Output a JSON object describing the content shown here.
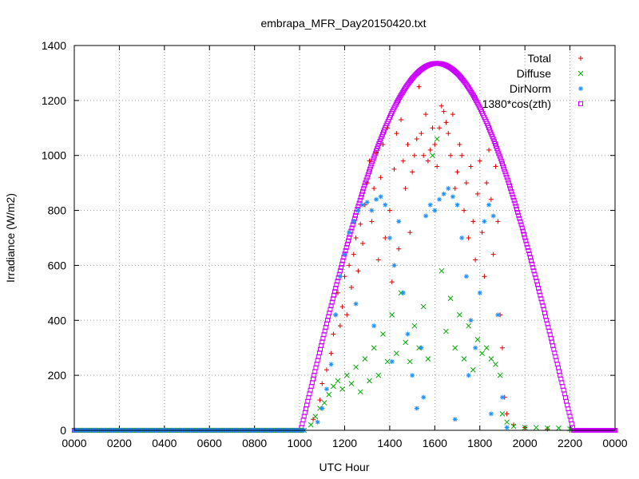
{
  "chart_data": {
    "type": "scatter",
    "title": "embrapa_MFR_Day20150420.txt",
    "xlabel": "UTC Hour",
    "ylabel": "Irradiance (W/m2)",
    "xlim": [
      0,
      24
    ],
    "ylim": [
      0,
      1400
    ],
    "x_ticks": [
      0,
      2,
      4,
      6,
      8,
      10,
      12,
      14,
      16,
      18,
      20,
      22,
      24
    ],
    "x_tick_labels": [
      "0000",
      "0200",
      "0400",
      "0600",
      "0800",
      "1000",
      "1200",
      "1400",
      "1600",
      "1800",
      "2000",
      "2200",
      "0000"
    ],
    "y_ticks": [
      0,
      200,
      400,
      600,
      800,
      1000,
      1200,
      1400
    ],
    "y_tick_labels": [
      "0",
      "200",
      "400",
      "600",
      "800",
      "1000",
      "1200",
      "1400"
    ],
    "grid": true,
    "legend_position": "top-right",
    "series": [
      {
        "name": "Total",
        "color": "#dd0000",
        "marker": "plus",
        "points": [
          [
            10.6,
            40
          ],
          [
            10.9,
            110
          ],
          [
            11.0,
            170
          ],
          [
            11.2,
            220
          ],
          [
            11.4,
            280
          ],
          [
            11.5,
            350
          ],
          [
            11.6,
            420
          ],
          [
            11.7,
            500
          ],
          [
            11.8,
            380
          ],
          [
            11.9,
            450
          ],
          [
            12.0,
            560
          ],
          [
            12.1,
            420
          ],
          [
            12.2,
            600
          ],
          [
            12.3,
            520
          ],
          [
            12.4,
            640
          ],
          [
            12.5,
            700
          ],
          [
            12.6,
            580
          ],
          [
            12.7,
            750
          ],
          [
            12.8,
            680
          ],
          [
            12.9,
            820
          ],
          [
            13.0,
            900
          ],
          [
            13.1,
            980
          ],
          [
            13.2,
            760
          ],
          [
            13.3,
            880
          ],
          [
            13.4,
            1010
          ],
          [
            13.5,
            620
          ],
          [
            13.6,
            920
          ],
          [
            13.7,
            1040
          ],
          [
            13.8,
            700
          ],
          [
            13.9,
            1100
          ],
          [
            14.0,
            800
          ],
          [
            14.1,
            540
          ],
          [
            14.2,
            950
          ],
          [
            14.3,
            1080
          ],
          [
            14.4,
            660
          ],
          [
            14.5,
            1130
          ],
          [
            14.6,
            980
          ],
          [
            14.7,
            880
          ],
          [
            14.8,
            1040
          ],
          [
            14.9,
            720
          ],
          [
            15.0,
            940
          ],
          [
            15.1,
            1000
          ],
          [
            15.2,
            1060
          ],
          [
            15.3,
            1250
          ],
          [
            15.4,
            1080
          ],
          [
            15.5,
            1000
          ],
          [
            15.6,
            1150
          ],
          [
            15.7,
            980
          ],
          [
            15.8,
            1020
          ],
          [
            15.9,
            1100
          ],
          [
            16.0,
            1040
          ],
          [
            16.1,
            960
          ],
          [
            16.2,
            1100
          ],
          [
            16.3,
            1180
          ],
          [
            16.4,
            1160
          ],
          [
            16.5,
            1120
          ],
          [
            16.6,
            1080
          ],
          [
            16.7,
            1000
          ],
          [
            16.8,
            1150
          ],
          [
            16.9,
            880
          ],
          [
            17.0,
            940
          ],
          [
            17.1,
            1040
          ],
          [
            17.2,
            1000
          ],
          [
            17.3,
            800
          ],
          [
            17.4,
            900
          ],
          [
            17.5,
            700
          ],
          [
            17.6,
            960
          ],
          [
            17.7,
            760
          ],
          [
            17.8,
            620
          ],
          [
            17.9,
            860
          ],
          [
            18.0,
            980
          ],
          [
            18.1,
            720
          ],
          [
            18.2,
            560
          ],
          [
            18.3,
            900
          ],
          [
            18.4,
            1020
          ],
          [
            18.5,
            840
          ],
          [
            18.6,
            640
          ],
          [
            18.7,
            960
          ],
          [
            18.8,
            760
          ],
          [
            18.9,
            420
          ],
          [
            19.0,
            300
          ],
          [
            19.1,
            120
          ],
          [
            19.2,
            60
          ],
          [
            19.5,
            20
          ],
          [
            20.0,
            10
          ],
          [
            21.0,
            5
          ],
          [
            22.0,
            0
          ]
        ]
      },
      {
        "name": "Diffuse",
        "color": "#00aa00",
        "marker": "x",
        "points": [
          [
            10.5,
            20
          ],
          [
            10.7,
            50
          ],
          [
            10.9,
            80
          ],
          [
            11.1,
            100
          ],
          [
            11.3,
            130
          ],
          [
            11.5,
            160
          ],
          [
            11.7,
            180
          ],
          [
            11.9,
            150
          ],
          [
            12.1,
            200
          ],
          [
            12.3,
            170
          ],
          [
            12.5,
            230
          ],
          [
            12.7,
            140
          ],
          [
            12.9,
            260
          ],
          [
            13.1,
            180
          ],
          [
            13.3,
            300
          ],
          [
            13.5,
            200
          ],
          [
            13.7,
            350
          ],
          [
            13.9,
            250
          ],
          [
            14.1,
            420
          ],
          [
            14.3,
            280
          ],
          [
            14.5,
            500
          ],
          [
            14.7,
            320
          ],
          [
            14.9,
            250
          ],
          [
            15.1,
            380
          ],
          [
            15.3,
            300
          ],
          [
            15.5,
            450
          ],
          [
            15.7,
            260
          ],
          [
            15.9,
            1000
          ],
          [
            16.1,
            1060
          ],
          [
            16.3,
            580
          ],
          [
            16.5,
            360
          ],
          [
            16.7,
            480
          ],
          [
            16.9,
            300
          ],
          [
            17.1,
            420
          ],
          [
            17.3,
            260
          ],
          [
            17.5,
            380
          ],
          [
            17.7,
            220
          ],
          [
            17.9,
            330
          ],
          [
            18.1,
            280
          ],
          [
            18.3,
            300
          ],
          [
            18.5,
            260
          ],
          [
            18.7,
            240
          ],
          [
            18.9,
            200
          ],
          [
            19.0,
            60
          ],
          [
            19.2,
            30
          ],
          [
            19.5,
            15
          ],
          [
            20.0,
            10
          ],
          [
            20.5,
            10
          ],
          [
            21.0,
            8
          ],
          [
            21.5,
            8
          ],
          [
            22.0,
            5
          ]
        ]
      },
      {
        "name": "DirNorm",
        "color": "#1e90ff",
        "marker": "star",
        "points": [
          [
            10.8,
            30
          ],
          [
            11.0,
            80
          ],
          [
            11.2,
            150
          ],
          [
            11.4,
            240
          ],
          [
            11.6,
            420
          ],
          [
            11.8,
            560
          ],
          [
            12.0,
            640
          ],
          [
            12.2,
            720
          ],
          [
            12.4,
            760
          ],
          [
            12.6,
            800
          ],
          [
            12.8,
            820
          ],
          [
            13.0,
            830
          ],
          [
            13.2,
            800
          ],
          [
            13.4,
            840
          ],
          [
            13.6,
            850
          ],
          [
            13.8,
            820
          ],
          [
            14.0,
            700
          ],
          [
            14.2,
            600
          ],
          [
            14.4,
            760
          ],
          [
            14.6,
            500
          ],
          [
            14.8,
            350
          ],
          [
            15.0,
            200
          ],
          [
            15.2,
            80
          ],
          [
            15.4,
            300
          ],
          [
            15.6,
            780
          ],
          [
            15.8,
            820
          ],
          [
            16.0,
            800
          ],
          [
            16.2,
            840
          ],
          [
            16.4,
            860
          ],
          [
            16.6,
            880
          ],
          [
            16.8,
            850
          ],
          [
            17.0,
            820
          ],
          [
            17.2,
            700
          ],
          [
            17.4,
            560
          ],
          [
            17.6,
            400
          ],
          [
            17.8,
            300
          ],
          [
            18.0,
            500
          ],
          [
            18.2,
            760
          ],
          [
            18.4,
            820
          ],
          [
            18.6,
            780
          ],
          [
            18.8,
            420
          ],
          [
            19.0,
            120
          ],
          [
            19.2,
            10
          ],
          [
            12.5,
            460
          ],
          [
            13.3,
            380
          ],
          [
            14.1,
            250
          ],
          [
            15.5,
            120
          ],
          [
            16.9,
            40
          ],
          [
            17.5,
            200
          ],
          [
            18.5,
            60
          ]
        ]
      },
      {
        "name": "1380*cos(zth)",
        "color": "#cc00ff",
        "marker": "square",
        "sunrise": 10.05,
        "sunset": 22.15,
        "peak_x": 16.1,
        "peak_y": 1335
      }
    ]
  }
}
